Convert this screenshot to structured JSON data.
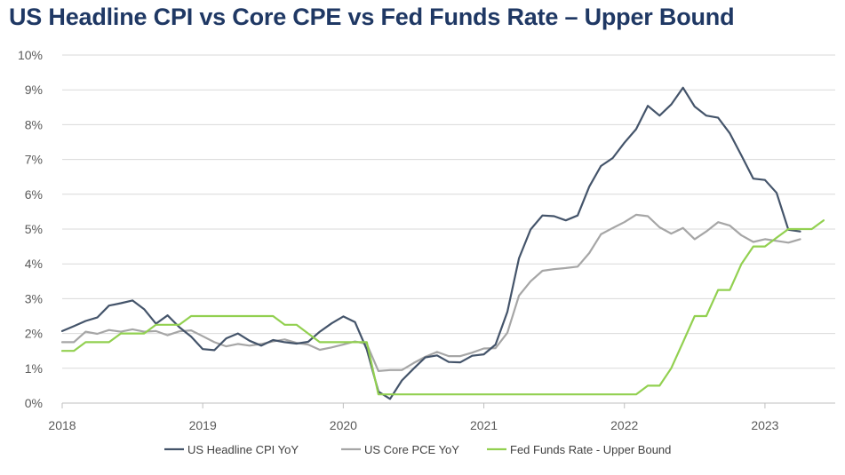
{
  "chart_data": {
    "type": "line",
    "title": "US Headline CPI vs Core CPE vs Fed Funds Rate – Upper Bound",
    "xlabel": "",
    "ylabel": "",
    "xlim": [
      2018,
      2023.5
    ],
    "ylim": [
      0,
      10
    ],
    "grid": "horizontal",
    "legend_position": "bottom",
    "y_ticks": [
      "0%",
      "1%",
      "2%",
      "3%",
      "4%",
      "5%",
      "6%",
      "7%",
      "8%",
      "9%",
      "10%"
    ],
    "x_ticks": [
      "2018",
      "2019",
      "2020",
      "2021",
      "2022",
      "2023"
    ],
    "x_tick_values": [
      2018,
      2019,
      2020,
      2021,
      2022,
      2023
    ],
    "series": [
      {
        "name": "US Headline CPI YoY",
        "color": "#44546a",
        "x": [
          2018.0,
          2018.083,
          2018.167,
          2018.25,
          2018.333,
          2018.417,
          2018.5,
          2018.583,
          2018.667,
          2018.75,
          2018.833,
          2018.917,
          2019.0,
          2019.083,
          2019.167,
          2019.25,
          2019.333,
          2019.417,
          2019.5,
          2019.583,
          2019.667,
          2019.75,
          2019.833,
          2019.917,
          2020.0,
          2020.083,
          2020.167,
          2020.25,
          2020.333,
          2020.417,
          2020.5,
          2020.583,
          2020.667,
          2020.75,
          2020.833,
          2020.917,
          2021.0,
          2021.083,
          2021.167,
          2021.25,
          2021.333,
          2021.417,
          2021.5,
          2021.583,
          2021.667,
          2021.75,
          2021.833,
          2021.917,
          2022.0,
          2022.083,
          2022.167,
          2022.25,
          2022.333,
          2022.417,
          2022.5,
          2022.583,
          2022.667,
          2022.75,
          2022.833,
          2022.917,
          2023.0,
          2023.083,
          2023.167,
          2023.25
        ],
        "values": [
          2.07,
          2.21,
          2.36,
          2.46,
          2.8,
          2.87,
          2.95,
          2.7,
          2.28,
          2.52,
          2.18,
          1.91,
          1.55,
          1.52,
          1.86,
          2.0,
          1.79,
          1.65,
          1.81,
          1.75,
          1.71,
          1.76,
          2.05,
          2.29,
          2.49,
          2.33,
          1.54,
          0.33,
          0.12,
          0.65,
          0.99,
          1.31,
          1.37,
          1.18,
          1.17,
          1.36,
          1.4,
          1.68,
          2.62,
          4.16,
          4.99,
          5.39,
          5.37,
          5.25,
          5.39,
          6.22,
          6.81,
          7.04,
          7.48,
          7.87,
          8.54,
          8.26,
          8.58,
          9.06,
          8.52,
          8.26,
          8.2,
          7.75,
          7.11,
          6.45,
          6.41,
          6.04,
          4.98,
          4.93
        ]
      },
      {
        "name": "US Core PCE YoY",
        "color": "#a6a6a6",
        "x": [
          2018.0,
          2018.083,
          2018.167,
          2018.25,
          2018.333,
          2018.417,
          2018.5,
          2018.583,
          2018.667,
          2018.75,
          2018.833,
          2018.917,
          2019.0,
          2019.083,
          2019.167,
          2019.25,
          2019.333,
          2019.417,
          2019.5,
          2019.583,
          2019.667,
          2019.75,
          2019.833,
          2019.917,
          2020.0,
          2020.083,
          2020.167,
          2020.25,
          2020.333,
          2020.417,
          2020.5,
          2020.583,
          2020.667,
          2020.75,
          2020.833,
          2020.917,
          2021.0,
          2021.083,
          2021.167,
          2021.25,
          2021.333,
          2021.417,
          2021.5,
          2021.583,
          2021.667,
          2021.75,
          2021.833,
          2021.917,
          2022.0,
          2022.083,
          2022.167,
          2022.25,
          2022.333,
          2022.417,
          2022.5,
          2022.583,
          2022.667,
          2022.75,
          2022.833,
          2022.917,
          2023.0,
          2023.083,
          2023.167,
          2023.25
        ],
        "values": [
          1.75,
          1.75,
          2.05,
          1.99,
          2.1,
          2.05,
          2.12,
          2.05,
          2.07,
          1.95,
          2.06,
          2.09,
          1.92,
          1.75,
          1.63,
          1.7,
          1.65,
          1.7,
          1.77,
          1.83,
          1.73,
          1.68,
          1.53,
          1.6,
          1.68,
          1.77,
          1.7,
          0.92,
          0.95,
          0.95,
          1.15,
          1.33,
          1.47,
          1.35,
          1.35,
          1.45,
          1.57,
          1.58,
          2.02,
          3.09,
          3.5,
          3.8,
          3.85,
          3.88,
          3.92,
          4.31,
          4.85,
          5.03,
          5.2,
          5.41,
          5.37,
          5.05,
          4.87,
          5.03,
          4.71,
          4.93,
          5.2,
          5.1,
          4.82,
          4.63,
          4.71,
          4.66,
          4.61,
          4.71
        ]
      },
      {
        "name": "Fed Funds Rate - Upper Bound",
        "color": "#92d050",
        "x": [
          2018.0,
          2018.083,
          2018.167,
          2018.25,
          2018.333,
          2018.417,
          2018.5,
          2018.583,
          2018.667,
          2018.75,
          2018.833,
          2018.917,
          2019.0,
          2019.083,
          2019.167,
          2019.25,
          2019.333,
          2019.417,
          2019.5,
          2019.583,
          2019.667,
          2019.75,
          2019.833,
          2019.917,
          2020.0,
          2020.083,
          2020.167,
          2020.25,
          2020.333,
          2020.417,
          2020.5,
          2020.583,
          2020.667,
          2020.75,
          2020.833,
          2020.917,
          2021.0,
          2021.083,
          2021.167,
          2021.25,
          2021.333,
          2021.417,
          2021.5,
          2021.583,
          2021.667,
          2021.75,
          2021.833,
          2021.917,
          2022.0,
          2022.083,
          2022.167,
          2022.25,
          2022.333,
          2022.417,
          2022.5,
          2022.583,
          2022.667,
          2022.75,
          2022.833,
          2022.917,
          2023.0,
          2023.083,
          2023.167,
          2023.25,
          2023.333,
          2023.417
        ],
        "values": [
          1.5,
          1.5,
          1.75,
          1.75,
          1.75,
          2.0,
          2.0,
          2.0,
          2.25,
          2.25,
          2.25,
          2.5,
          2.5,
          2.5,
          2.5,
          2.5,
          2.5,
          2.5,
          2.5,
          2.25,
          2.25,
          2.0,
          1.75,
          1.75,
          1.75,
          1.75,
          1.75,
          0.25,
          0.25,
          0.25,
          0.25,
          0.25,
          0.25,
          0.25,
          0.25,
          0.25,
          0.25,
          0.25,
          0.25,
          0.25,
          0.25,
          0.25,
          0.25,
          0.25,
          0.25,
          0.25,
          0.25,
          0.25,
          0.25,
          0.25,
          0.5,
          0.5,
          1.0,
          1.75,
          2.5,
          2.5,
          3.25,
          3.25,
          4.0,
          4.5,
          4.5,
          4.75,
          5.0,
          5.0,
          5.0,
          5.25
        ]
      }
    ]
  }
}
